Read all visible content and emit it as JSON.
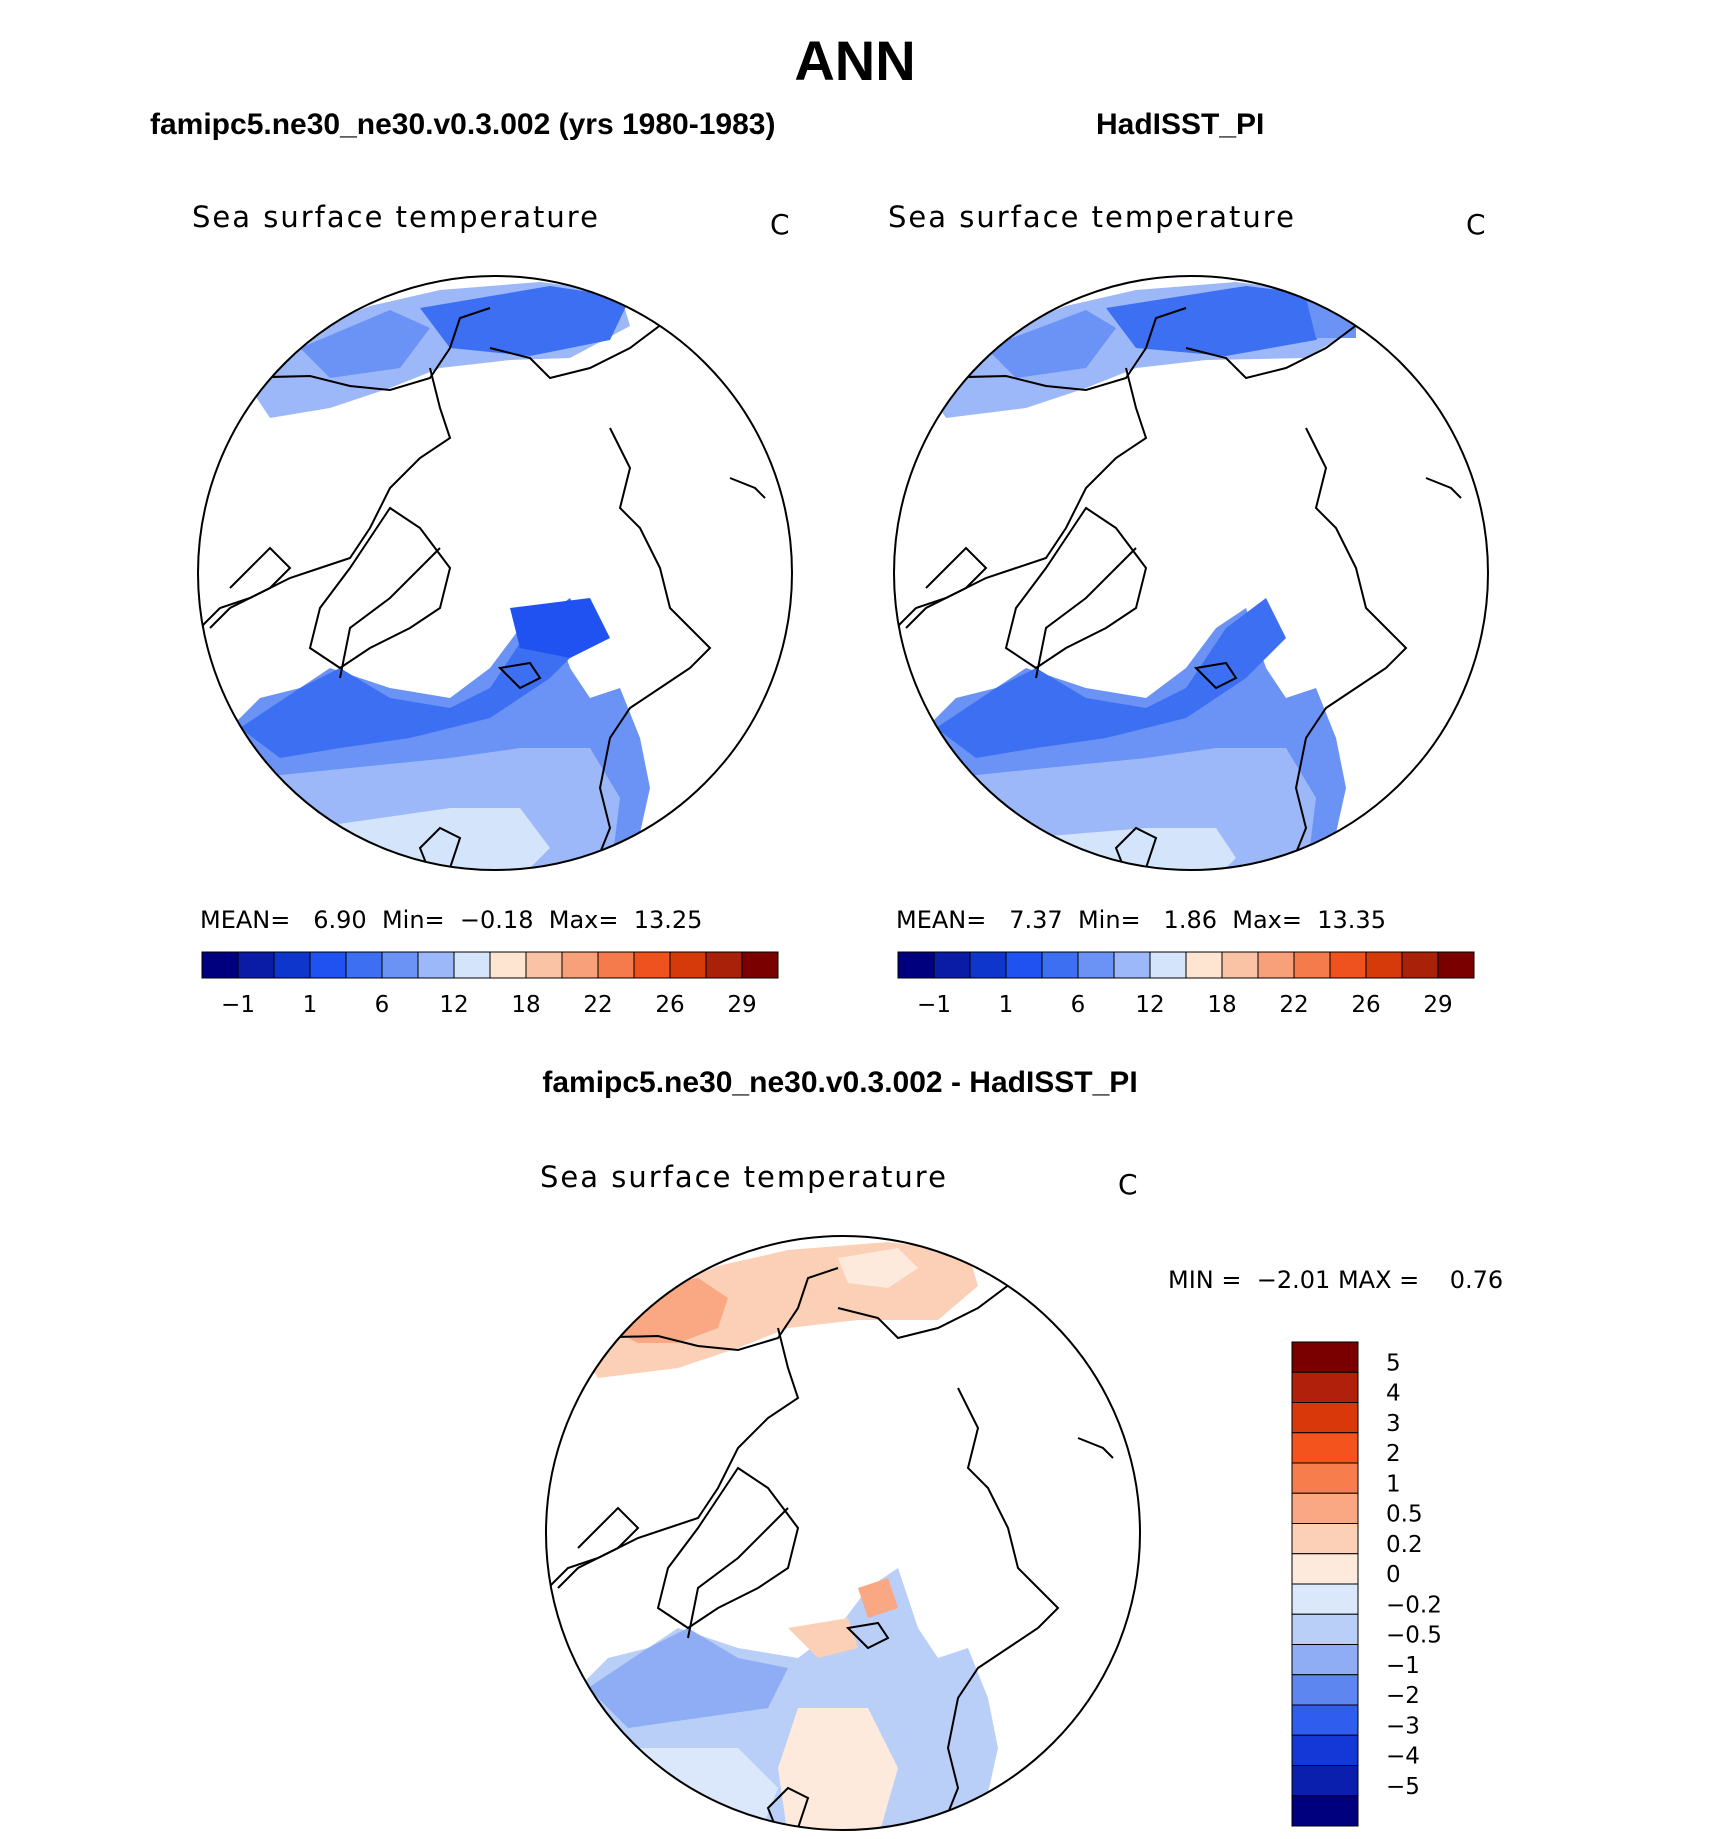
{
  "figure": {
    "title": "ANN"
  },
  "chart_data": [
    {
      "type": "heatmap",
      "panel_title": "famipc5.ne30_ne30.v0.3.002 (yrs 1980-1983)",
      "field_label": "Sea surface temperature",
      "units": "C",
      "stats": {
        "mean_label": "MEAN=",
        "mean": "6.90",
        "min_label": "Min=",
        "min": "−0.18",
        "max_label": "Max=",
        "max": "13.25"
      },
      "colorbar": {
        "orientation": "horizontal",
        "colors": [
          "#00007f",
          "#0a1ca6",
          "#0f36cc",
          "#1f52f0",
          "#3d6ff2",
          "#6b93f5",
          "#9db8f8",
          "#d3e4fb",
          "#fde5d2",
          "#fbc3a6",
          "#f8a07a",
          "#f57b4c",
          "#f0521f",
          "#d63a0b",
          "#a82108",
          "#7a0000"
        ],
        "tick_labels": [
          "−1",
          "1",
          "6",
          "12",
          "18",
          "22",
          "26",
          "29"
        ]
      }
    },
    {
      "type": "heatmap",
      "panel_title": "HadISST_PI",
      "field_label": "Sea surface temperature",
      "units": "C",
      "stats": {
        "mean_label": "MEAN=",
        "mean": "7.37",
        "min_label": "Min=",
        "min": "1.86",
        "max_label": "Max=",
        "max": "13.35"
      },
      "colorbar": {
        "orientation": "horizontal",
        "colors": [
          "#00007f",
          "#0a1ca6",
          "#0f36cc",
          "#1f52f0",
          "#3d6ff2",
          "#6b93f5",
          "#9db8f8",
          "#d3e4fb",
          "#fde5d2",
          "#fbc3a6",
          "#f8a07a",
          "#f57b4c",
          "#f0521f",
          "#d63a0b",
          "#a82108",
          "#7a0000"
        ],
        "tick_labels": [
          "−1",
          "1",
          "6",
          "12",
          "18",
          "22",
          "26",
          "29"
        ]
      }
    },
    {
      "type": "heatmap",
      "panel_title": "famipc5.ne30_ne30.v0.3.002 - HadISST_PI",
      "field_label": "Sea surface temperature",
      "units": "C",
      "stats": {
        "min_label": "MIN =",
        "min": "−2.01",
        "max_label": "MAX =",
        "max": "0.76"
      },
      "colorbar": {
        "orientation": "vertical",
        "colors_top_to_bottom": [
          "#7a0000",
          "#b0200a",
          "#d8380a",
          "#f4531e",
          "#f77d4c",
          "#f9a883",
          "#fbd0b6",
          "#fdeadc",
          "#dbe8fb",
          "#b9cff8",
          "#8eadf4",
          "#5e86f0",
          "#2f5ded",
          "#1438d8",
          "#0b1fae",
          "#00007f"
        ],
        "tick_labels": [
          "5",
          "4",
          "3",
          "2",
          "1",
          "0.5",
          "0.2",
          "0",
          "−0.2",
          "−0.5",
          "−1",
          "−2",
          "−3",
          "−4",
          "−5"
        ]
      }
    }
  ]
}
